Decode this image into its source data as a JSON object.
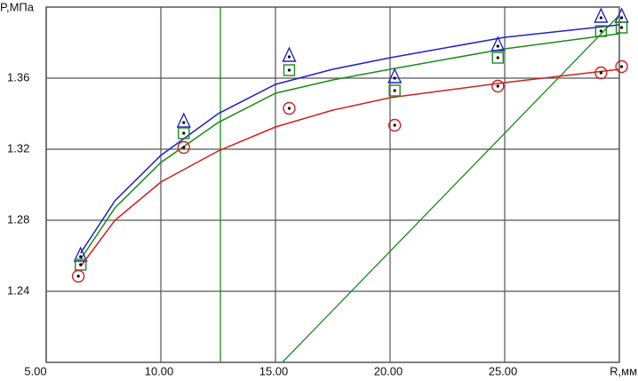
{
  "chart_data": {
    "type": "scatter",
    "y_label": "P,МПа",
    "x_label": "R,мм",
    "xlim": [
      5,
      30
    ],
    "ylim": [
      1.2,
      1.4
    ],
    "xticks": [
      {
        "value": 5,
        "label": "5.00"
      },
      {
        "value": 10,
        "label": "10.00"
      },
      {
        "value": 15,
        "label": "15.00"
      },
      {
        "value": 20,
        "label": "20.00"
      },
      {
        "value": 25,
        "label": "25.00"
      }
    ],
    "yticks": [
      1.24,
      1.28,
      1.32,
      1.36
    ],
    "grid": true,
    "series": [
      {
        "color": "#2020d0",
        "marker": "triangle",
        "x": [
          6.5,
          11,
          15.6,
          20.2,
          24.7,
          29.2,
          30.1
        ],
        "values": [
          1.2595,
          1.335,
          1.372,
          1.36,
          1.378,
          1.394,
          1.394
        ]
      },
      {
        "color": "#1a8a1a",
        "marker": "square",
        "x": [
          6.5,
          11,
          15.6,
          20.2,
          24.7,
          29.2,
          30.1
        ],
        "values": [
          1.255,
          1.329,
          1.3645,
          1.353,
          1.3715,
          1.3865,
          1.3885
        ]
      },
      {
        "color": "#d02020",
        "marker": "circle",
        "x": [
          6.4,
          11,
          15.6,
          20.2,
          24.7,
          29.2,
          30.1
        ],
        "values": [
          1.2485,
          1.321,
          1.343,
          1.3335,
          1.3555,
          1.363,
          1.3665
        ]
      }
    ],
    "fits": [
      {
        "color": "#2020d0",
        "x": [
          6.5,
          8,
          10,
          12.5,
          15,
          17.5,
          20,
          25,
          30
        ],
        "values": [
          1.2615,
          1.291,
          1.3165,
          1.34,
          1.3565,
          1.365,
          1.3715,
          1.383,
          1.39
        ]
      },
      {
        "color": "#1a8a1a",
        "x": [
          6.5,
          8,
          10,
          12.5,
          15,
          17.5,
          20,
          25,
          30
        ],
        "values": [
          1.258,
          1.287,
          1.3125,
          1.335,
          1.3515,
          1.359,
          1.365,
          1.3765,
          1.385
        ]
      },
      {
        "color": "#d02020",
        "x": [
          6.5,
          8,
          10,
          12.5,
          15,
          17.5,
          20,
          25,
          30
        ],
        "values": [
          1.254,
          1.28,
          1.3015,
          1.319,
          1.3325,
          1.342,
          1.349,
          1.3575,
          1.365
        ]
      }
    ],
    "guides": [
      {
        "color": "#1a8a1a",
        "x": [
          12.6,
          12.6
        ],
        "values": [
          1.2,
          1.4
        ]
      },
      {
        "color": "#1a8a1a",
        "x": [
          15.3,
          30
        ],
        "values": [
          1.2,
          1.3955
        ]
      }
    ]
  }
}
